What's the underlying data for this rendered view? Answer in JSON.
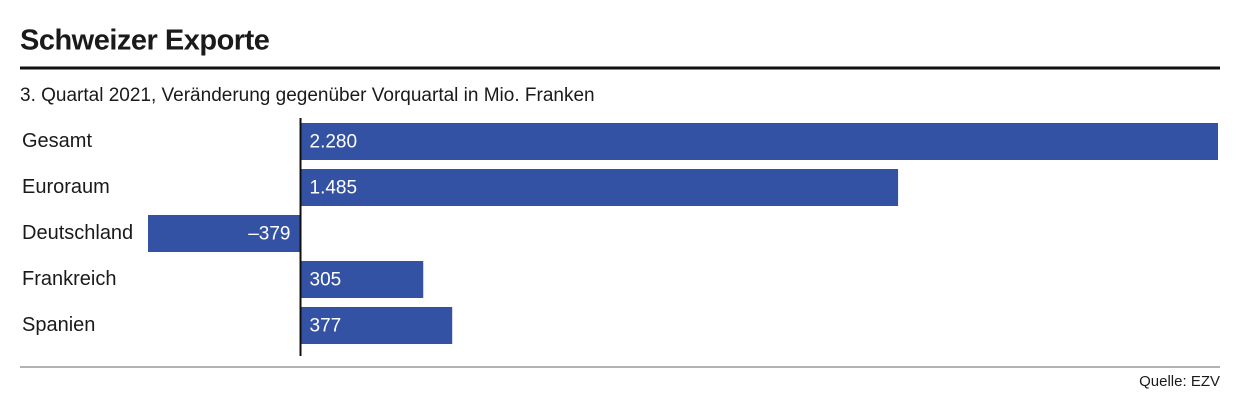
{
  "chart_data": {
    "type": "bar",
    "orientation": "horizontal",
    "title": "Schweizer Exporte",
    "subtitle": "3. Quartal 2021, Veränderung gegenüber Vorquartal in Mio. Franken",
    "categories": [
      "Gesamt",
      "Euroraum",
      "Deutschland",
      "Frankreich",
      "Spanien"
    ],
    "values": [
      2280,
      1485,
      -379,
      305,
      377
    ],
    "value_labels": [
      "2.280",
      "1.485",
      "–379",
      "305",
      "377"
    ],
    "color": "#3352a3",
    "source": "Quelle: EZV"
  }
}
